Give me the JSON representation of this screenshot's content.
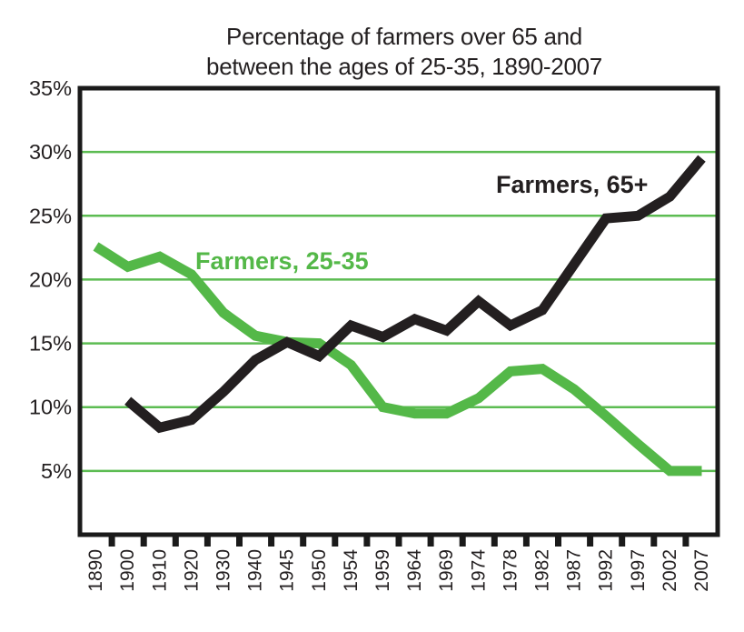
{
  "title": {
    "line1": "Percentage of farmers over 65 and",
    "line2": "between the ages of 25-35, 1890-2007"
  },
  "colors": {
    "green": "#54b848",
    "black": "#231f20",
    "gridline_green": "#5cbc52",
    "axis_black": "#1a1a1a",
    "background": "#ffffff"
  },
  "chart_data": {
    "type": "line",
    "title": "Percentage of farmers over 65 and between the ages of 25-35, 1890-2007",
    "categories": [
      "1890",
      "1900",
      "1910",
      "1920",
      "1930",
      "1940",
      "1945",
      "1950",
      "1954",
      "1959",
      "1964",
      "1969",
      "1974",
      "1978",
      "1982",
      "1987",
      "1992",
      "1997",
      "2002",
      "2007"
    ],
    "series": [
      {
        "name": "Farmers, 65+",
        "color": "#231f20",
        "values": [
          null,
          10.5,
          8.4,
          9.0,
          11.2,
          13.7,
          15.1,
          14.0,
          16.4,
          15.5,
          16.9,
          16.0,
          18.3,
          16.4,
          17.6,
          21.2,
          24.8,
          25.0,
          26.5,
          29.5
        ]
      },
      {
        "name": "Farmers, 25-35",
        "color": "#54b848",
        "values": [
          22.6,
          21.0,
          21.8,
          20.4,
          17.4,
          15.6,
          15.1,
          15.0,
          13.3,
          10.0,
          9.5,
          9.5,
          10.7,
          12.8,
          13.0,
          11.4,
          9.3,
          7.1,
          5.0,
          5.0
        ]
      }
    ],
    "ylim": [
      0,
      35
    ],
    "ytick_labels": [
      "35%",
      "30%",
      "25%",
      "20%",
      "15%",
      "10%",
      "5%"
    ],
    "ytick_values": [
      35,
      30,
      25,
      20,
      15,
      10,
      5
    ],
    "gridline_values": [
      30,
      25,
      20,
      15,
      10,
      5
    ],
    "grid": "horizontal-only",
    "legend_position": "inline-labels",
    "series_label_65plus": "Farmers, 65+",
    "series_label_2535": "Farmers, 25-35"
  }
}
